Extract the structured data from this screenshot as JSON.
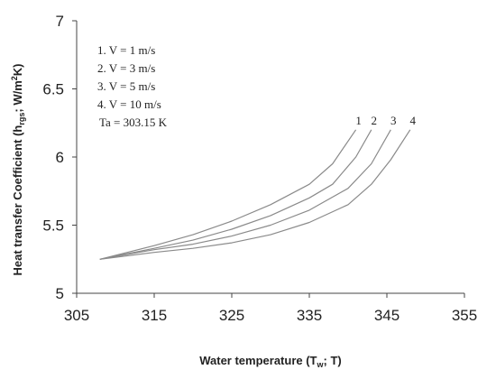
{
  "chart_data": {
    "type": "line",
    "title": "",
    "xlabel": {
      "pre": "Water temperature (T",
      "sub": "w",
      "post": "; T)"
    },
    "ylabel": {
      "pre": "Heat transfer Coefficient  (h",
      "sub": "rgs",
      "mid": "; W/m",
      "sup": "2",
      "post": "K)"
    },
    "xlim": [
      305,
      355
    ],
    "ylim": [
      5,
      7
    ],
    "x_ticks": [
      "305",
      "315",
      "325",
      "335",
      "345",
      "355"
    ],
    "y_ticks": [
      "5",
      "5.5",
      "6",
      "6.5",
      "7"
    ],
    "legend_lines": [
      "1. V = 1 m/s",
      "2. V = 3 m/s",
      "3. V = 5 m/s",
      "4. V = 10 m/s",
      "Ta = 303.15 K"
    ],
    "series": [
      {
        "name": "1",
        "x": [
          308,
          315,
          320,
          325,
          330,
          335,
          338,
          341
        ],
        "y": [
          5.25,
          5.35,
          5.43,
          5.53,
          5.65,
          5.8,
          5.95,
          6.2
        ]
      },
      {
        "name": "2",
        "x": [
          308,
          315,
          320,
          325,
          330,
          335,
          338,
          341,
          343
        ],
        "y": [
          5.25,
          5.33,
          5.39,
          5.47,
          5.57,
          5.7,
          5.8,
          6.0,
          6.2
        ]
      },
      {
        "name": "3",
        "x": [
          308,
          315,
          320,
          325,
          330,
          335,
          340,
          343,
          345.5
        ],
        "y": [
          5.25,
          5.32,
          5.36,
          5.42,
          5.5,
          5.61,
          5.77,
          5.95,
          6.2
        ]
      },
      {
        "name": "4",
        "x": [
          308,
          315,
          320,
          325,
          330,
          335,
          340,
          343,
          345.5,
          348
        ],
        "y": [
          5.25,
          5.3,
          5.33,
          5.37,
          5.43,
          5.52,
          5.65,
          5.8,
          5.98,
          6.2
        ]
      }
    ]
  }
}
